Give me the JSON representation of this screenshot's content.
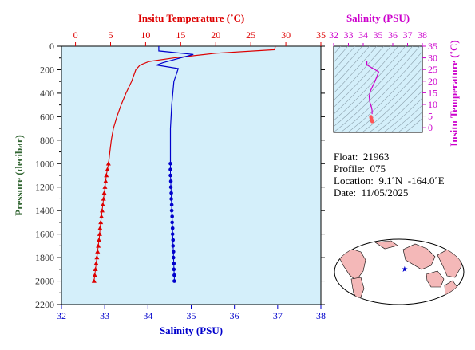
{
  "chart_data": [
    {
      "type": "line",
      "top_axis": {
        "label": "Insitu Temperature (˚C)",
        "range": [
          -2,
          35
        ],
        "ticks": [
          0,
          5,
          10,
          15,
          20,
          25,
          30,
          35
        ],
        "color": "#dd0000"
      },
      "bottom_axis": {
        "label": "Salinity (PSU)",
        "range": [
          32,
          38
        ],
        "ticks": [
          32,
          33,
          34,
          35,
          36,
          37,
          38
        ],
        "color": "#0000cc"
      },
      "left_axis": {
        "label": "Pressure (decibar)",
        "range": [
          0,
          2200
        ],
        "ticks": [
          0,
          200,
          400,
          600,
          800,
          1000,
          1200,
          1400,
          1600,
          1800,
          2000,
          2200
        ],
        "color": "#333333",
        "inverted": true
      },
      "series": [
        {
          "color": "#dd0000",
          "line": [
            [
              28.5,
              0
            ],
            [
              28.4,
              30
            ],
            [
              20,
              60
            ],
            [
              14,
              100
            ],
            [
              10.5,
              130
            ],
            [
              9.2,
              160
            ],
            [
              8.6,
              200
            ],
            [
              8,
              300
            ],
            [
              7.2,
              400
            ],
            [
              6.5,
              500
            ],
            [
              5.9,
              600
            ],
            [
              5.4,
              700
            ],
            [
              5.1,
              800
            ],
            [
              4.9,
              900
            ],
            [
              4.7,
              1000
            ]
          ],
          "markers": "triangle",
          "marker_points": [
            [
              4.7,
              1000
            ],
            [
              4.55,
              1050
            ],
            [
              4.4,
              1100
            ],
            [
              4.3,
              1150
            ],
            [
              4.2,
              1200
            ],
            [
              4.1,
              1250
            ],
            [
              4.0,
              1300
            ],
            [
              3.9,
              1350
            ],
            [
              3.8,
              1400
            ],
            [
              3.7,
              1450
            ],
            [
              3.6,
              1500
            ],
            [
              3.5,
              1550
            ],
            [
              3.45,
              1600
            ],
            [
              3.35,
              1650
            ],
            [
              3.25,
              1700
            ],
            [
              3.15,
              1750
            ],
            [
              3.05,
              1800
            ],
            [
              2.95,
              1850
            ],
            [
              2.85,
              1900
            ],
            [
              2.75,
              1950
            ],
            [
              2.65,
              2000
            ]
          ]
        },
        {
          "color": "#0000cc",
          "line": [
            [
              34.25,
              0
            ],
            [
              34.25,
              40
            ],
            [
              35.05,
              70
            ],
            [
              34.35,
              140
            ],
            [
              34.2,
              160
            ],
            [
              34.7,
              190
            ],
            [
              34.6,
              300
            ],
            [
              34.55,
              500
            ],
            [
              34.52,
              700
            ],
            [
              34.52,
              900
            ],
            [
              34.52,
              1000
            ]
          ],
          "markers": "circle",
          "marker_points": [
            [
              34.52,
              1000
            ],
            [
              34.52,
              1050
            ],
            [
              34.52,
              1100
            ],
            [
              34.53,
              1150
            ],
            [
              34.53,
              1200
            ],
            [
              34.54,
              1250
            ],
            [
              34.54,
              1300
            ],
            [
              34.55,
              1350
            ],
            [
              34.55,
              1400
            ],
            [
              34.56,
              1450
            ],
            [
              34.56,
              1500
            ],
            [
              34.57,
              1550
            ],
            [
              34.57,
              1600
            ],
            [
              34.58,
              1650
            ],
            [
              34.58,
              1700
            ],
            [
              34.59,
              1750
            ],
            [
              34.59,
              1800
            ],
            [
              34.6,
              1850
            ],
            [
              34.6,
              1900
            ],
            [
              34.61,
              1950
            ],
            [
              34.61,
              2000
            ]
          ]
        }
      ]
    },
    {
      "type": "line",
      "top_axis": {
        "label": "Salinity (PSU)",
        "range": [
          32,
          38
        ],
        "ticks": [
          32,
          33,
          34,
          35,
          36,
          37,
          38
        ],
        "color": "#cc00cc"
      },
      "right_axis": {
        "label": "Insitu Temperature (˚C)",
        "range": [
          -2,
          35
        ],
        "ticks": [
          0,
          5,
          10,
          15,
          20,
          25,
          30,
          35
        ],
        "color": "#cc00cc"
      },
      "series": [
        {
          "color": "#cc00cc",
          "line": [
            [
              34.25,
              28.5
            ],
            [
              34.25,
              27
            ],
            [
              35.05,
              24
            ],
            [
              34.8,
              20
            ],
            [
              34.5,
              16
            ],
            [
              34.4,
              13.5
            ],
            [
              34.45,
              11
            ],
            [
              34.55,
              9
            ],
            [
              34.6,
              7.5
            ],
            [
              34.6,
              6
            ]
          ],
          "markers": "none"
        },
        {
          "color": "#ff5555",
          "line": [
            [
              34.52,
              4.7
            ],
            [
              34.53,
              4.2
            ],
            [
              34.55,
              3.8
            ],
            [
              34.57,
              3.4
            ],
            [
              34.59,
              3.0
            ],
            [
              34.61,
              2.65
            ]
          ],
          "markers": "circle"
        }
      ]
    }
  ],
  "info": {
    "float": "Float:  21963",
    "profile": "Profile:  075",
    "location": "Location:  9.1˚N  -164.0˚E",
    "date": "Date:  11/05/2025"
  },
  "map": {
    "marker_lon": -164.0,
    "marker_lat": 9.1,
    "marker_color": "#0000cc",
    "land_color": "#f4b8b8",
    "ocean_color": "#ffffff"
  },
  "colors": {
    "plot_bg": "#d4effa",
    "ts_bg": "#d4effa",
    "temperature": "#dd0000",
    "salinity": "#0000cc",
    "ts_curve": "#cc00cc"
  }
}
